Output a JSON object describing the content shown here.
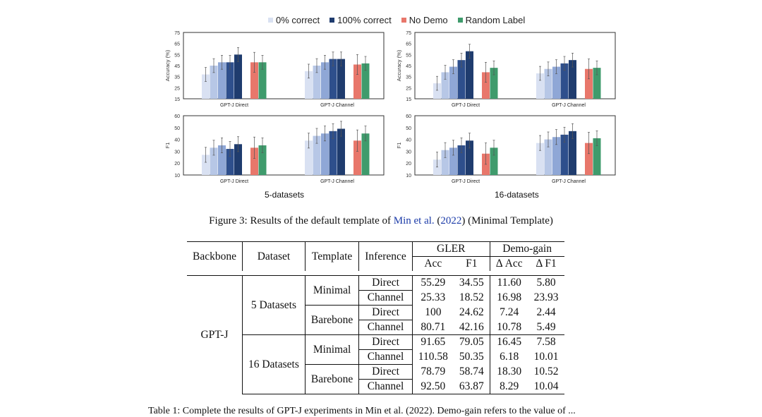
{
  "legend": [
    {
      "label": "0% correct",
      "color": "#d9e1f2"
    },
    {
      "label": "100% correct",
      "color": "#1f3c6e"
    },
    {
      "label": "No Demo",
      "color": "#e8776b"
    },
    {
      "label": "Random Label",
      "color": "#3f9b6c"
    }
  ],
  "bar_colors": [
    "#d9e1f2",
    "#b7c7e6",
    "#8fa7d6",
    "#5a78b8",
    "#2e4f8c",
    "#1f3c6e"
  ],
  "chart_data": [
    {
      "type": "bar",
      "panel": "5-datasets accuracy",
      "ylabel": "Accuracy (%)",
      "ylim": [
        15,
        75
      ],
      "yticks": [
        15,
        25,
        35,
        45,
        55,
        65,
        75
      ],
      "groups": [
        {
          "name": "GPT-J Direct",
          "values": [
            37,
            45,
            48,
            48,
            55
          ],
          "nodemo": 48,
          "random": 48
        },
        {
          "name": "GPT-J Channel",
          "values": [
            40,
            45,
            48,
            51,
            51
          ],
          "nodemo": 46,
          "random": 47
        }
      ]
    },
    {
      "type": "bar",
      "panel": "16-datasets accuracy",
      "ylabel": "Accuracy (%)",
      "ylim": [
        15,
        75
      ],
      "yticks": [
        15,
        25,
        35,
        45,
        55,
        65,
        75
      ],
      "groups": [
        {
          "name": "GPT-J Direct",
          "values": [
            29,
            39,
            44,
            50,
            58
          ],
          "nodemo": 39,
          "random": 43
        },
        {
          "name": "GPT-J Channel",
          "values": [
            38,
            42,
            44,
            47,
            50
          ],
          "nodemo": 42,
          "random": 43
        }
      ]
    },
    {
      "type": "bar",
      "panel": "5-datasets F1",
      "ylabel": "F1",
      "ylim": [
        10,
        60
      ],
      "yticks": [
        10,
        20,
        30,
        40,
        50,
        60
      ],
      "groups": [
        {
          "name": "GPT-J Direct",
          "values": [
            27,
            33,
            35,
            32,
            36
          ],
          "nodemo": 33,
          "random": 35
        },
        {
          "name": "GPT-J Channel",
          "values": [
            39,
            43,
            45,
            47,
            49
          ],
          "nodemo": 39,
          "random": 45
        }
      ]
    },
    {
      "type": "bar",
      "panel": "16-datasets F1",
      "ylabel": "F1",
      "ylim": [
        10,
        60
      ],
      "yticks": [
        10,
        20,
        30,
        40,
        50,
        60
      ],
      "groups": [
        {
          "name": "GPT-J Direct",
          "values": [
            23,
            31,
            33,
            35,
            39
          ],
          "nodemo": 28,
          "random": 33
        },
        {
          "name": "GPT-J Channel",
          "values": [
            37,
            40,
            42,
            44,
            47
          ],
          "nodemo": 37,
          "random": 41
        }
      ]
    }
  ],
  "dataset_labels": {
    "left": "5-datasets",
    "right": "16-datasets"
  },
  "caption": {
    "pre": "Figure 3: Results of the default template of ",
    "link": "Min et al.",
    "mid": " (",
    "year": "2022",
    "post": ") (Minimal Template)"
  },
  "table": {
    "headers": {
      "backbone": "Backbone",
      "dataset": "Dataset",
      "template": "Template",
      "inference": "Inference",
      "gler": "GLER",
      "demogain": "Demo-gain",
      "acc": "Acc",
      "f1": "F1",
      "dacc": "Δ Acc",
      "df1": "Δ F1"
    },
    "backbone": "GPT-J",
    "datasets": [
      "5 Datasets",
      "16 Datasets"
    ],
    "templates": [
      "Minimal",
      "Barebone"
    ],
    "rows": [
      [
        "Direct",
        "55.29",
        "34.55",
        "11.60",
        "5.80"
      ],
      [
        "Channel",
        "25.33",
        "18.52",
        "16.98",
        "23.93"
      ],
      [
        "Direct",
        "100",
        "24.62",
        "7.24",
        "2.44"
      ],
      [
        "Channel",
        "80.71",
        "42.16",
        "10.78",
        "5.49"
      ],
      [
        "Direct",
        "91.65",
        "79.05",
        "16.45",
        "7.58"
      ],
      [
        "Channel",
        "110.58",
        "50.35",
        "6.18",
        "10.01"
      ],
      [
        "Direct",
        "78.79",
        "58.74",
        "18.30",
        "10.52"
      ],
      [
        "Channel",
        "92.50",
        "63.87",
        "8.29",
        "10.04"
      ]
    ]
  },
  "table_caption": "Table 1: Complete the results of GPT-J experiments in Min et al. (2022). Demo-gain refers to the value of ..."
}
